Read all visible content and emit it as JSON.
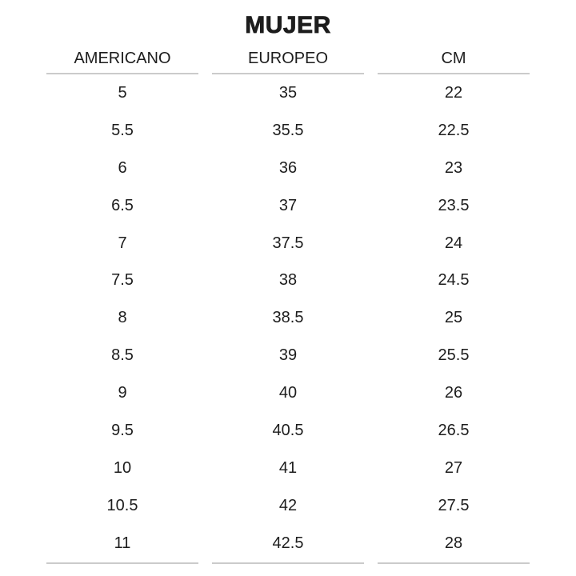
{
  "title": "MUJER",
  "chart_data": {
    "type": "table",
    "title": "MUJER",
    "columns": [
      "AMERICANO",
      "EUROPEO",
      "CM"
    ],
    "rows": [
      [
        "5",
        "35",
        "22"
      ],
      [
        "5.5",
        "35.5",
        "22.5"
      ],
      [
        "6",
        "36",
        "23"
      ],
      [
        "6.5",
        "37",
        "23.5"
      ],
      [
        "7",
        "37.5",
        "24"
      ],
      [
        "7.5",
        "38",
        "24.5"
      ],
      [
        "8",
        "38.5",
        "25"
      ],
      [
        "8.5",
        "39",
        "25.5"
      ],
      [
        "9",
        "40",
        "26"
      ],
      [
        "9.5",
        "40.5",
        "26.5"
      ],
      [
        "10",
        "41",
        "27"
      ],
      [
        "10.5",
        "42",
        "27.5"
      ],
      [
        "11",
        "42.5",
        "28"
      ]
    ],
    "layout": {
      "legend": "none",
      "grid": "header-underline-and-bottom-rule-only",
      "column_alignment": "center"
    }
  },
  "colors": {
    "text": "#1d1d1d",
    "rule": "#cbcbcb",
    "background": "#ffffff"
  }
}
